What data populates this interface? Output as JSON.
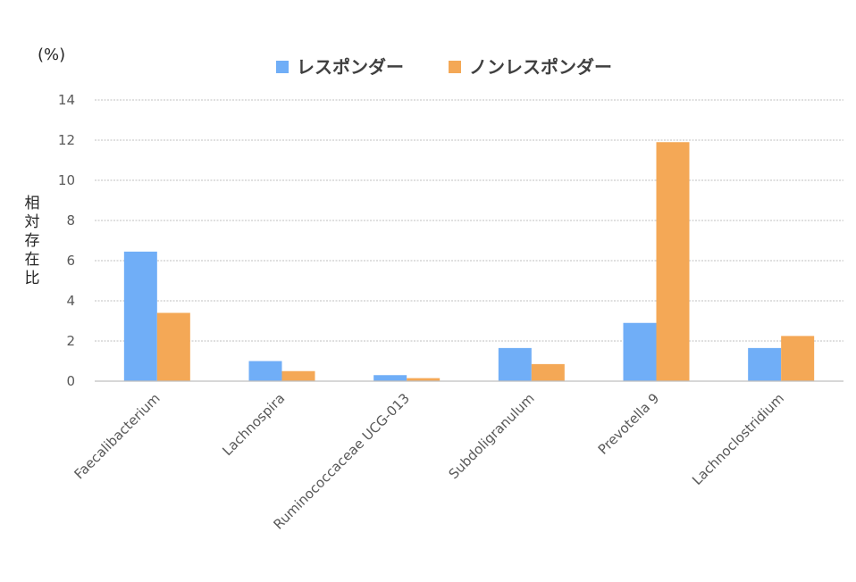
{
  "chart_data": {
    "type": "bar",
    "unit_label": "(%)",
    "ylabel": "相対存在比",
    "xlabel": "",
    "title": "",
    "ylim": [
      0,
      14
    ],
    "yticks": [
      0,
      2,
      4,
      6,
      8,
      10,
      12,
      14
    ],
    "grid": true,
    "legend_position": "top",
    "categories": [
      "Faecalibacterium",
      "Lachnospira",
      "Ruminococcaceae UCG-013",
      "Subdoligranulum",
      "Prevotella 9",
      "Lachnoclostridium"
    ],
    "series": [
      {
        "name": "レスポンダー",
        "color": "#70aef7",
        "values": [
          6.45,
          1.0,
          0.3,
          1.65,
          2.9,
          1.65
        ]
      },
      {
        "name": "ノンレスポンダー",
        "color": "#f4a856",
        "values": [
          3.4,
          0.5,
          0.15,
          0.85,
          11.9,
          2.25
        ]
      }
    ]
  }
}
